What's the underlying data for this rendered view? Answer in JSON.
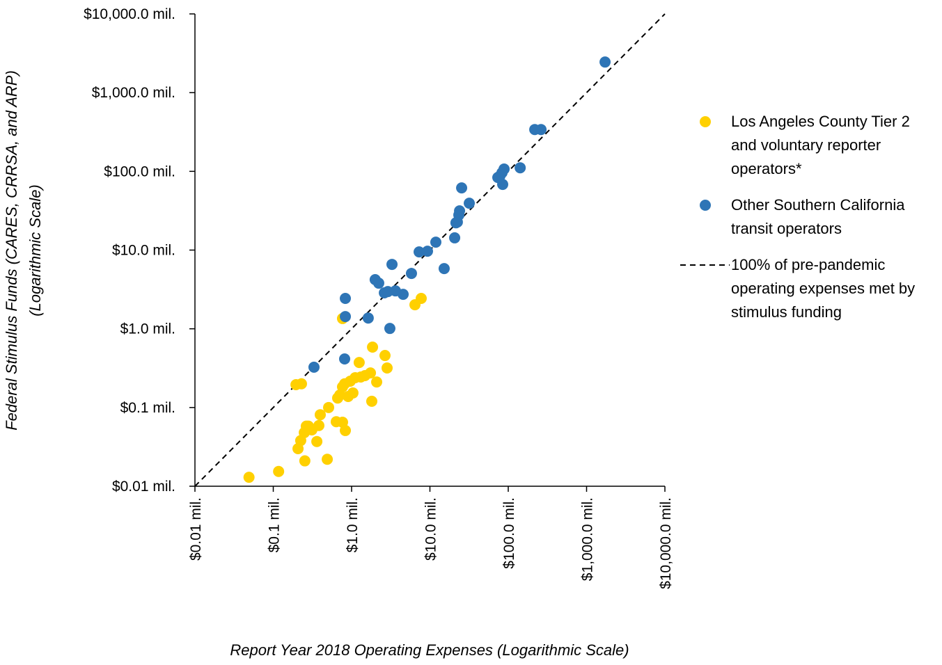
{
  "chart_data": {
    "type": "scatter",
    "x_label": "Report Year 2018 Operating Expenses (Logarithmic Scale)",
    "y_label": [
      "Federal Stimulus Funds (CARES, CRRSA, and ARP)",
      "(Logarithmic Scale)"
    ],
    "xscale": "log",
    "yscale": "log",
    "legend": "right",
    "xlim": [
      0.01,
      10000
    ],
    "ylim": [
      0.01,
      10000
    ],
    "xticks": [
      {
        "value": 0.01,
        "label": "$0.01 mil."
      },
      {
        "value": 0.1,
        "label": "$0.1 mil."
      },
      {
        "value": 1,
        "label": "$1.0 mil."
      },
      {
        "value": 10,
        "label": "$10.0 mil."
      },
      {
        "value": 100,
        "label": "$100.0 mil."
      },
      {
        "value": 1000,
        "label": "$1,000.0 mil."
      },
      {
        "value": 10000,
        "label": "$10,000.0 mil."
      }
    ],
    "yticks": [
      {
        "value": 0.01,
        "label": "$0.01 mil."
      },
      {
        "value": 0.1,
        "label": "$0.1 mil."
      },
      {
        "value": 1,
        "label": "$1.0 mil."
      },
      {
        "value": 10,
        "label": "$10.0 mil."
      },
      {
        "value": 100,
        "label": "$100.0 mil."
      },
      {
        "value": 1000,
        "label": "$1,000.0 mil."
      },
      {
        "value": 10000,
        "label": "$10,000.0 mil."
      }
    ],
    "series": [
      {
        "name": "Los Angeles County Tier 2 and voluntary reporter operators*",
        "color": "#FFD000",
        "x": [
          0.049,
          0.117,
          0.195,
          0.229,
          0.207,
          0.224,
          0.249,
          0.264,
          0.281,
          0.311,
          0.253,
          0.36,
          0.382,
          0.398,
          0.509,
          0.489,
          0.637,
          0.664,
          0.707,
          0.766,
          0.766,
          0.832,
          0.815,
          0.904,
          0.96,
          1.04,
          1.11,
          1.25,
          1.31,
          1.48,
          1.74,
          1.81,
          1.85,
          2.09,
          2.67,
          2.84,
          6.44,
          7.74,
          0.766
        ],
        "values": [
          0.013,
          0.0154,
          0.195,
          0.2,
          0.03,
          0.038,
          0.048,
          0.058,
          0.058,
          0.052,
          0.021,
          0.037,
          0.059,
          0.081,
          0.1,
          0.022,
          0.066,
          0.132,
          0.144,
          0.183,
          0.065,
          0.051,
          0.2,
          0.138,
          0.216,
          0.153,
          0.239,
          0.373,
          0.244,
          0.254,
          0.275,
          0.12,
          0.585,
          0.211,
          0.458,
          0.318,
          2.02,
          2.43,
          1.35
        ]
      },
      {
        "name": "Other Southern California transit operators",
        "color": "#2E75B6",
        "x": [
          1722,
          218,
          262,
          142,
          88.5,
          83.2,
          78.2,
          73.6,
          84.9,
          25.4,
          31.8,
          23.9,
          23.4,
          22.4,
          21.5,
          20.7,
          11.9,
          9.31,
          7.28,
          15.2,
          5.81,
          3.28,
          2.0,
          2.22,
          2.62,
          2.9,
          3.63,
          4.55,
          0.832,
          1.63,
          0.832,
          3.08,
          0.815,
          0.331
        ],
        "values": [
          2448,
          340,
          340,
          111,
          107,
          96,
          87,
          83.6,
          68.2,
          61.6,
          39.4,
          31.5,
          27.9,
          22.7,
          22.2,
          14.3,
          12.6,
          9.68,
          9.48,
          5.82,
          5.05,
          6.58,
          4.21,
          3.8,
          2.86,
          2.97,
          3.03,
          2.74,
          2.43,
          1.37,
          1.43,
          1.01,
          0.414,
          0.325
        ]
      }
    ],
    "reference_line": {
      "name": "100% of pre-pandemic operating expenses met by stimulus funding",
      "color": "#000000"
    }
  }
}
